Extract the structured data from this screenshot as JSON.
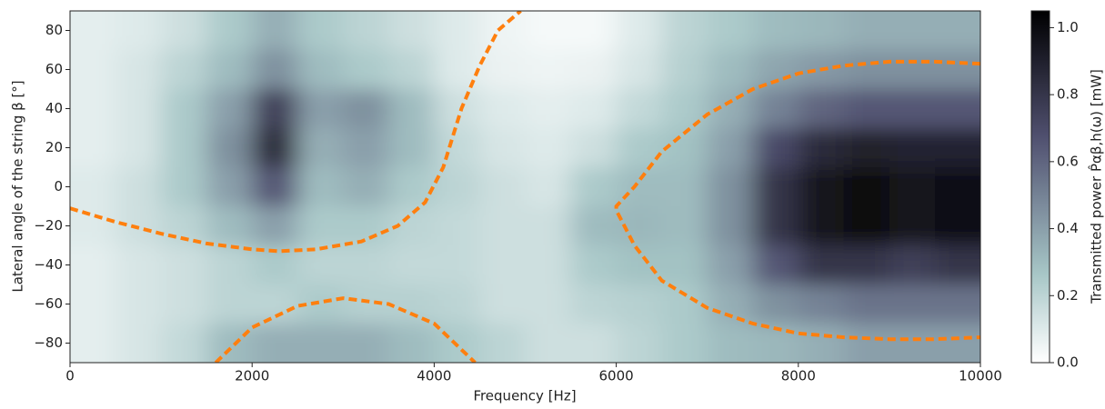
{
  "chart_data": {
    "type": "heatmap",
    "xlabel": "Frequency [Hz]",
    "ylabel": "Lateral angle of the string  β [°]",
    "colorbar_label": "Transmitted power  P̂αβ,h(ω)  [mW]",
    "colormap": "bone_r",
    "x": [
      250,
      750,
      1250,
      1750,
      2250,
      2750,
      3250,
      3750,
      4250,
      4750,
      5250,
      5750,
      6250,
      6750,
      7250,
      7750,
      8250,
      8750,
      9250,
      9750
    ],
    "y": [
      80,
      60,
      40,
      20,
      0,
      -20,
      -40,
      -60,
      -80
    ],
    "z": [
      [
        0.08,
        0.1,
        0.15,
        0.25,
        0.35,
        0.25,
        0.2,
        0.15,
        0.1,
        0.05,
        0.03,
        0.03,
        0.1,
        0.2,
        0.25,
        0.3,
        0.32,
        0.35,
        0.35,
        0.35
      ],
      [
        0.08,
        0.12,
        0.2,
        0.3,
        0.45,
        0.3,
        0.25,
        0.2,
        0.1,
        0.06,
        0.05,
        0.06,
        0.12,
        0.22,
        0.3,
        0.38,
        0.42,
        0.45,
        0.45,
        0.45
      ],
      [
        0.08,
        0.12,
        0.25,
        0.4,
        0.75,
        0.4,
        0.45,
        0.3,
        0.15,
        0.1,
        0.08,
        0.1,
        0.18,
        0.25,
        0.35,
        0.5,
        0.6,
        0.65,
        0.65,
        0.65
      ],
      [
        0.08,
        0.12,
        0.25,
        0.45,
        0.85,
        0.35,
        0.4,
        0.3,
        0.18,
        0.12,
        0.1,
        0.15,
        0.25,
        0.28,
        0.4,
        0.7,
        0.85,
        0.9,
        0.88,
        0.88
      ],
      [
        0.1,
        0.15,
        0.25,
        0.4,
        0.65,
        0.3,
        0.35,
        0.25,
        0.2,
        0.15,
        0.12,
        0.25,
        0.3,
        0.3,
        0.45,
        0.8,
        0.95,
        1.0,
        0.95,
        0.98
      ],
      [
        0.1,
        0.15,
        0.2,
        0.3,
        0.4,
        0.25,
        0.25,
        0.2,
        0.18,
        0.15,
        0.15,
        0.3,
        0.32,
        0.3,
        0.45,
        0.8,
        0.95,
        1.0,
        0.95,
        0.98
      ],
      [
        0.08,
        0.12,
        0.15,
        0.2,
        0.25,
        0.2,
        0.2,
        0.18,
        0.18,
        0.15,
        0.15,
        0.25,
        0.28,
        0.28,
        0.4,
        0.65,
        0.8,
        0.8,
        0.75,
        0.8
      ],
      [
        0.08,
        0.12,
        0.15,
        0.2,
        0.2,
        0.25,
        0.22,
        0.22,
        0.2,
        0.15,
        0.15,
        0.2,
        0.22,
        0.25,
        0.35,
        0.45,
        0.5,
        0.55,
        0.55,
        0.55
      ],
      [
        0.08,
        0.12,
        0.18,
        0.3,
        0.35,
        0.35,
        0.35,
        0.3,
        0.25,
        0.2,
        0.15,
        0.15,
        0.2,
        0.25,
        0.3,
        0.32,
        0.35,
        0.4,
        0.4,
        0.4
      ]
    ],
    "xlim": [
      0,
      10000
    ],
    "ylim": [
      -90,
      90
    ],
    "xticks": [
      0,
      2000,
      4000,
      6000,
      8000,
      10000
    ],
    "yticks": [
      {
        "value": -80,
        "label": "−80"
      },
      {
        "value": -60,
        "label": "−60"
      },
      {
        "value": -40,
        "label": "−40"
      },
      {
        "value": -20,
        "label": "−20"
      },
      0,
      20,
      40,
      60,
      80
    ],
    "clim": [
      0,
      1.05
    ],
    "cticks": [
      {
        "value": 0,
        "label": "0.0"
      },
      {
        "value": 0.2,
        "label": "0.2"
      },
      {
        "value": 0.4,
        "label": "0.4"
      },
      {
        "value": 0.6,
        "label": "0.6"
      },
      {
        "value": 0.8,
        "label": "0.8"
      },
      {
        "value": 1,
        "label": "1.0"
      }
    ],
    "curves": [
      {
        "color": "#ff7f0e",
        "x": [
          0,
          500,
          1000,
          1500,
          2000,
          2300,
          2700,
          3200,
          3600,
          3900,
          4100,
          4300,
          4500,
          4700,
          4950
        ],
        "y": [
          -11,
          -18,
          -24,
          -29,
          -32,
          -33,
          -32,
          -28,
          -20,
          -8,
          10,
          40,
          62,
          80,
          90
        ]
      },
      {
        "color": "#ff7f0e",
        "x": [
          1600,
          2000,
          2500,
          3000,
          3500,
          4000,
          4450
        ],
        "y": [
          -90,
          -72,
          -61,
          -57,
          -60,
          -70,
          -90
        ]
      },
      {
        "color": "#ff7f0e",
        "x": [
          10000,
          9500,
          9000,
          8500,
          8000,
          7500,
          7000,
          6500,
          6200,
          6000,
          6000,
          6200,
          6500,
          7000,
          7500,
          8000,
          8500,
          9000,
          9500,
          10000
        ],
        "y": [
          63,
          64,
          64,
          62,
          58,
          50,
          37,
          18,
          0,
          -10,
          -12,
          -30,
          -48,
          -62,
          -70,
          -75,
          -77,
          -78,
          -78,
          -77
        ]
      }
    ]
  }
}
